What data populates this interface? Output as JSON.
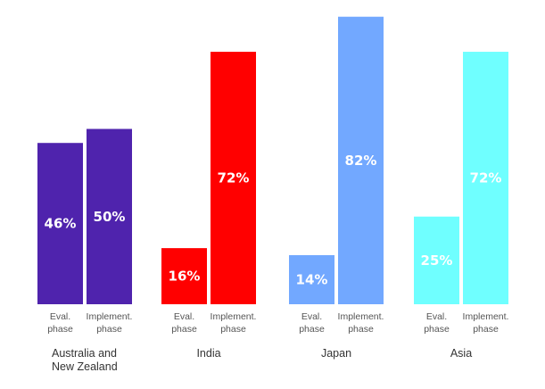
{
  "chart_data": {
    "type": "bar",
    "title": "",
    "xlabel": "",
    "ylabel": "",
    "ylim": [
      0,
      100
    ],
    "grid": false,
    "legend": "none",
    "categories": [
      "Australia and New Zealand",
      "India",
      "Japan",
      "Asia"
    ],
    "category_lines": [
      [
        "Australia and",
        "New Zealand"
      ],
      [
        "India"
      ],
      [
        "Japan"
      ],
      [
        "Asia"
      ]
    ],
    "series": [
      {
        "name": "Eval. phase",
        "label_lines": [
          "Eval.",
          "phase"
        ],
        "values": [
          46,
          16,
          14,
          25
        ]
      },
      {
        "name": "Implement. phase",
        "label_lines": [
          "Implement.",
          "phase"
        ],
        "values": [
          50,
          72,
          82,
          72
        ]
      }
    ],
    "data_labels": [
      [
        "46%",
        "16%",
        "14%",
        "25%"
      ],
      [
        "50%",
        "72%",
        "82%",
        "72%"
      ]
    ],
    "colors": [
      "#4F23AD",
      "#FF0000",
      "#72A8FF",
      "#6FFFFF"
    ]
  }
}
